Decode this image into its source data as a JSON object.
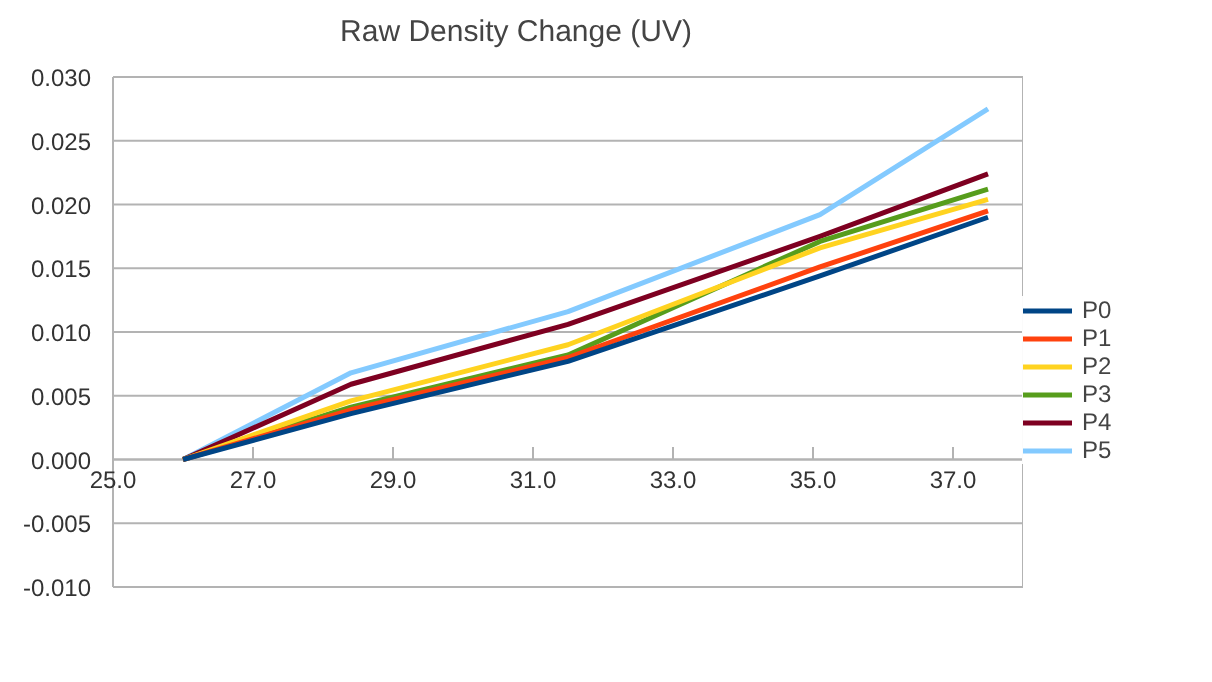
{
  "chart_data": {
    "type": "line",
    "title": "Raw Density Change (UV)",
    "x": [
      26.0,
      28.4,
      31.5,
      35.1,
      37.5
    ],
    "series": [
      {
        "name": "P0",
        "color": "#004586",
        "values": [
          0.0,
          0.0036,
          0.0077,
          0.0144,
          0.019
        ]
      },
      {
        "name": "P1",
        "color": "#ff420e",
        "values": [
          0.0,
          0.0039,
          0.008,
          0.0151,
          0.0195
        ]
      },
      {
        "name": "P2",
        "color": "#ffd320",
        "values": [
          0.0,
          0.0046,
          0.009,
          0.0166,
          0.0204
        ]
      },
      {
        "name": "P3",
        "color": "#579d1c",
        "values": [
          0.0,
          0.0041,
          0.0082,
          0.0171,
          0.0212
        ]
      },
      {
        "name": "P4",
        "color": "#7e0021",
        "values": [
          0.0,
          0.0059,
          0.0106,
          0.0175,
          0.0224
        ]
      },
      {
        "name": "P5",
        "color": "#83caff",
        "values": [
          0.0,
          0.0068,
          0.0116,
          0.0192,
          0.0275
        ]
      }
    ],
    "xlim": [
      25,
      38
    ],
    "xticks": [
      {
        "value": 25,
        "label": "25.0"
      },
      {
        "value": 27,
        "label": "27.0"
      },
      {
        "value": 29,
        "label": "29.0"
      },
      {
        "value": 31,
        "label": "31.0"
      },
      {
        "value": 33,
        "label": "33.0"
      },
      {
        "value": 35,
        "label": "35.0"
      },
      {
        "value": 37,
        "label": "37.0"
      }
    ],
    "ylim": [
      -0.01,
      0.03
    ],
    "yticks": [
      {
        "value": -0.01,
        "label": "-0.010"
      },
      {
        "value": -0.005,
        "label": "-0.005"
      },
      {
        "value": 0,
        "label": "0.000"
      },
      {
        "value": 0.005,
        "label": "0.005"
      },
      {
        "value": 0.01,
        "label": "0.010"
      },
      {
        "value": 0.015,
        "label": "0.015"
      },
      {
        "value": 0.02,
        "label": "0.020"
      },
      {
        "value": 0.025,
        "label": "0.025"
      },
      {
        "value": 0.03,
        "label": "0.030"
      }
    ],
    "grid": "y",
    "legend": "right",
    "marker": "none",
    "line_style": "solid"
  }
}
